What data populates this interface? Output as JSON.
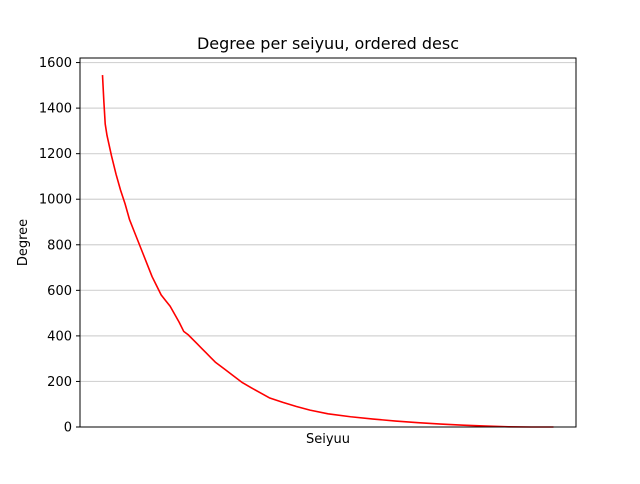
{
  "chart_data": {
    "type": "line",
    "title": "Degree per seiyuu, ordered desc",
    "xlabel": "Seiyuu",
    "ylabel": "Degree",
    "ylim": [
      0,
      1620
    ],
    "yticks": [
      "0",
      "200",
      "400",
      "600",
      "800",
      "1000",
      "1200",
      "1400",
      "1600"
    ],
    "grid": "y-major",
    "x_ticks_visible": false,
    "line_color": "#ff0000",
    "series": [
      {
        "x": [
          0,
          0.003,
          0.006,
          0.01,
          0.02,
          0.03,
          0.04,
          0.05,
          0.06,
          0.07,
          0.08,
          0.09,
          0.1,
          0.11,
          0.12,
          0.13,
          0.14,
          0.15,
          0.16,
          0.17,
          0.18,
          0.19,
          0.2,
          0.21,
          0.22,
          0.23,
          0.24,
          0.25,
          0.27,
          0.29,
          0.31,
          0.33,
          0.35,
          0.37,
          0.4,
          0.43,
          0.46,
          0.5,
          0.55,
          0.6,
          0.65,
          0.7,
          0.75,
          0.8,
          0.85,
          0.9,
          0.95,
          0.98,
          1.0
        ],
        "values": [
          1545,
          1430,
          1330,
          1280,
          1190,
          1110,
          1040,
          980,
          910,
          860,
          810,
          760,
          710,
          660,
          620,
          580,
          555,
          530,
          495,
          460,
          420,
          405,
          385,
          365,
          345,
          325,
          305,
          285,
          255,
          225,
          195,
          172,
          150,
          128,
          108,
          90,
          74,
          58,
          45,
          35,
          26,
          19,
          13,
          8,
          4,
          1,
          0,
          0,
          0
        ]
      }
    ]
  }
}
